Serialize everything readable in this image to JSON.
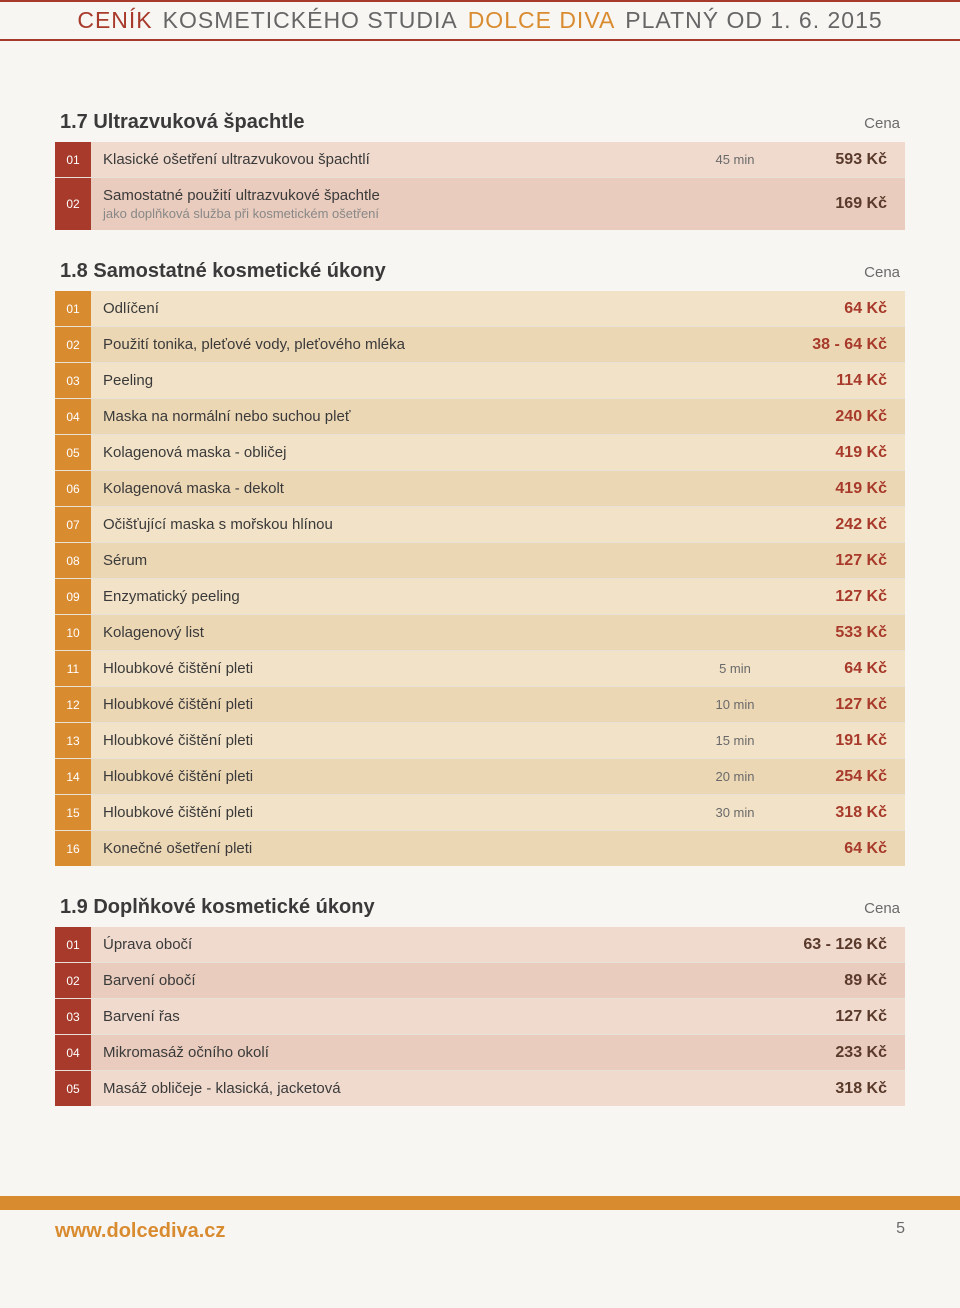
{
  "header": {
    "part1": "CENÍK",
    "part2": "KOSMETICKÉHO STUDIA",
    "part3": "DOLCE DIVA",
    "part4": "PLATNÝ OD 1. 6. 2015"
  },
  "sections": [
    {
      "title": "1.7 Ultrazvuková špachtle",
      "cena": "Cena",
      "theme": "burgundy",
      "rows": [
        {
          "num": "01",
          "desc": "Klasické ošetření ultrazvukovou špachtlí",
          "sub": "",
          "time": "45 min",
          "price": "593 Kč"
        },
        {
          "num": "02",
          "desc": "Samostatné použití ultrazvukové špachtle",
          "sub": "jako doplňková služba při kosmetickém ošetření",
          "time": "",
          "price": "169 Kč"
        }
      ]
    },
    {
      "title": "1.8 Samostatné kosmetické úkony",
      "cena": "Cena",
      "theme": "orange",
      "rows": [
        {
          "num": "01",
          "desc": "Odlíčení",
          "sub": "",
          "time": "",
          "price": "64 Kč"
        },
        {
          "num": "02",
          "desc": "Použití tonika, pleťové vody, pleťového mléka",
          "sub": "",
          "time": "",
          "price": "38 - 64 Kč"
        },
        {
          "num": "03",
          "desc": "Peeling",
          "sub": "",
          "time": "",
          "price": "114 Kč"
        },
        {
          "num": "04",
          "desc": "Maska na normální nebo suchou pleť",
          "sub": "",
          "time": "",
          "price": "240 Kč"
        },
        {
          "num": "05",
          "desc": "Kolagenová maska - obličej",
          "sub": "",
          "time": "",
          "price": "419 Kč"
        },
        {
          "num": "06",
          "desc": "Kolagenová maska - dekolt",
          "sub": "",
          "time": "",
          "price": "419 Kč"
        },
        {
          "num": "07",
          "desc": "Očišťující maska s mořskou hlínou",
          "sub": "",
          "time": "",
          "price": "242 Kč"
        },
        {
          "num": "08",
          "desc": "Sérum",
          "sub": "",
          "time": "",
          "price": "127 Kč"
        },
        {
          "num": "09",
          "desc": "Enzymatický peeling",
          "sub": "",
          "time": "",
          "price": "127 Kč"
        },
        {
          "num": "10",
          "desc": "Kolagenový list",
          "sub": "",
          "time": "",
          "price": "533 Kč"
        },
        {
          "num": "11",
          "desc": "Hloubkové čištění pleti",
          "sub": "",
          "time": "5 min",
          "price": "64 Kč"
        },
        {
          "num": "12",
          "desc": "Hloubkové čištění pleti",
          "sub": "",
          "time": "10 min",
          "price": "127 Kč"
        },
        {
          "num": "13",
          "desc": "Hloubkové čištění pleti",
          "sub": "",
          "time": "15 min",
          "price": "191 Kč"
        },
        {
          "num": "14",
          "desc": "Hloubkové čištění pleti",
          "sub": "",
          "time": "20 min",
          "price": "254 Kč"
        },
        {
          "num": "15",
          "desc": "Hloubkové čištění pleti",
          "sub": "",
          "time": "30 min",
          "price": "318 Kč"
        },
        {
          "num": "16",
          "desc": "Konečné ošetření pleti",
          "sub": "",
          "time": "",
          "price": "64 Kč"
        }
      ]
    },
    {
      "title": "1.9 Doplňkové kosmetické úkony",
      "cena": "Cena",
      "theme": "burgundy",
      "rows": [
        {
          "num": "01",
          "desc": "Úprava obočí",
          "sub": "",
          "time": "",
          "price": "63 - 126 Kč"
        },
        {
          "num": "02",
          "desc": "Barvení obočí",
          "sub": "",
          "time": "",
          "price": "89 Kč"
        },
        {
          "num": "03",
          "desc": "Barvení řas",
          "sub": "",
          "time": "",
          "price": "127 Kč"
        },
        {
          "num": "04",
          "desc": "Mikromasáž očního okolí",
          "sub": "",
          "time": "",
          "price": "233 Kč"
        },
        {
          "num": "05",
          "desc": "Masáž obličeje - klasická, jacketová",
          "sub": "",
          "time": "",
          "price": "318 Kč"
        }
      ]
    }
  ],
  "footer": {
    "url": "www.dolcediva.cz",
    "page": "5"
  },
  "colors": {
    "red": "#a73a2a",
    "orange": "#d98b30",
    "gray": "#666666"
  }
}
